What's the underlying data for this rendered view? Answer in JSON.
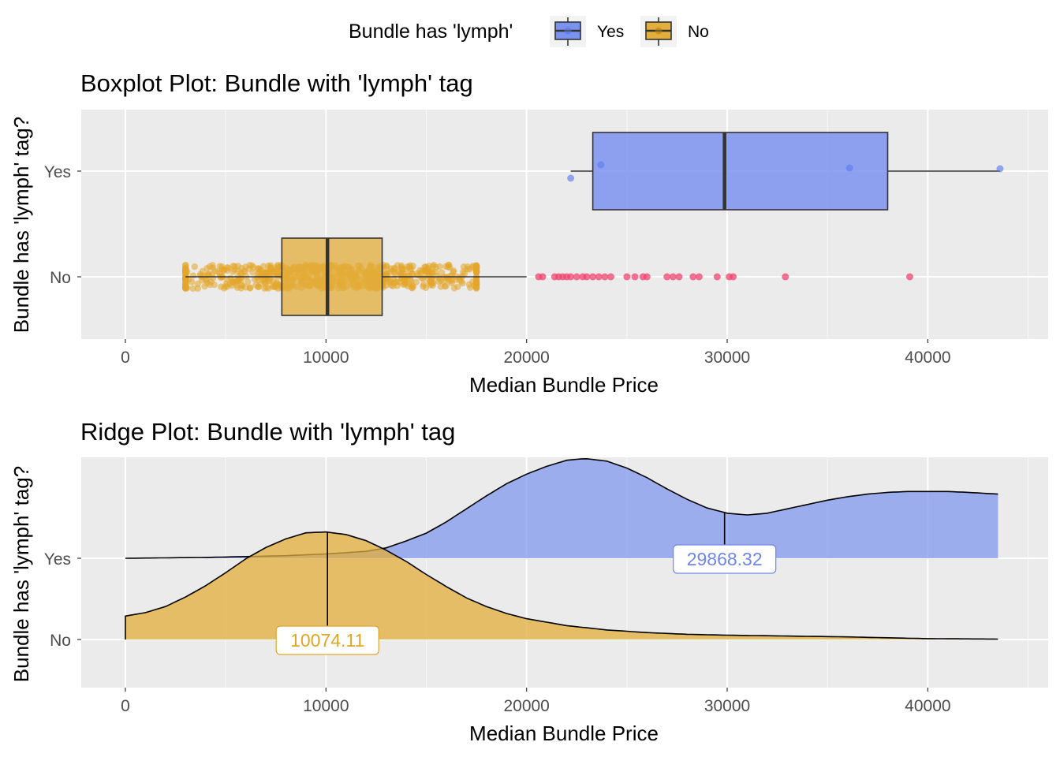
{
  "legend": {
    "title": "Bundle has 'lymph'",
    "items": [
      {
        "label": "Yes",
        "color": "#7b93f0"
      },
      {
        "label": "No",
        "color": "#e3ae3b"
      }
    ]
  },
  "colors": {
    "panel_bg": "#ebebeb",
    "grid": "#ffffff",
    "yes_fill": "#7b93f0",
    "no_fill": "#e3ae3b",
    "yes_point": "#7b93f0",
    "no_point": "#e3a52a",
    "outlier_point": "#f0436e",
    "yes_label": "#6f86ec",
    "no_label": "#e0a627"
  },
  "chart_data": [
    {
      "type": "boxplot",
      "title": "Boxplot Plot: Bundle with 'lymph' tag",
      "xlabel": "Median Bundle Price",
      "ylabel": "Bundle has 'lymph' tag?",
      "categories": [
        "Yes",
        "No"
      ],
      "xlim": [
        -2200,
        46000
      ],
      "x_ticks": [
        0,
        10000,
        20000,
        30000,
        40000
      ],
      "x_tick_labels": [
        "0",
        "10000",
        "20000",
        "30000",
        "40000"
      ],
      "boxes": [
        {
          "name": "Yes",
          "whisker_low": 22200,
          "q1": 23300,
          "median": 29868.32,
          "q3": 38000,
          "whisker_high": 43600
        },
        {
          "name": "No",
          "whisker_low": 3000,
          "q1": 7800,
          "median": 10074.11,
          "q3": 12800,
          "whisker_high": 20000
        }
      ],
      "yes_points": [
        22200,
        23700,
        36100,
        43600
      ],
      "no_points_range": [
        3000,
        17500
      ],
      "outliers": [
        20600,
        20800,
        21400,
        21600,
        21800,
        22000,
        22200,
        22500,
        22800,
        23000,
        23300,
        23600,
        23900,
        24200,
        25000,
        25400,
        25800,
        26000,
        27000,
        27300,
        27600,
        28300,
        28600,
        29500,
        30100,
        30300,
        32900,
        39100
      ],
      "grid": true
    },
    {
      "type": "ridge",
      "title": "Ridge Plot: Bundle with 'lymph' tag",
      "xlabel": "Median Bundle Price",
      "ylabel": "Bundle has 'lymph' tag?",
      "categories": [
        "Yes",
        "No"
      ],
      "xlim": [
        -2200,
        46000
      ],
      "x_ticks": [
        0,
        10000,
        20000,
        30000,
        40000
      ],
      "x_tick_labels": [
        "0",
        "10000",
        "20000",
        "30000",
        "40000"
      ],
      "series": [
        {
          "name": "Yes",
          "x": [
            0,
            2000,
            4000,
            6000,
            8000,
            10000,
            12000,
            13000,
            14000,
            15000,
            16000,
            17000,
            18000,
            19000,
            20000,
            21000,
            22000,
            22900,
            24000,
            25000,
            26000,
            27000,
            28000,
            29000,
            30000,
            31000,
            32000,
            33000,
            34000,
            35000,
            36000,
            37000,
            38000,
            39000,
            40000,
            41000,
            42000,
            43500
          ],
          "density": [
            0.0,
            0.005,
            0.01,
            0.02,
            0.03,
            0.05,
            0.08,
            0.12,
            0.2,
            0.29,
            0.42,
            0.57,
            0.72,
            0.86,
            0.97,
            1.06,
            1.13,
            1.15,
            1.12,
            1.04,
            0.93,
            0.8,
            0.68,
            0.58,
            0.52,
            0.5,
            0.52,
            0.57,
            0.62,
            0.67,
            0.71,
            0.74,
            0.76,
            0.77,
            0.77,
            0.77,
            0.76,
            0.74
          ],
          "median": 29868.32,
          "median_label": "29868.32"
        },
        {
          "name": "No",
          "x": [
            0,
            1000,
            2000,
            3000,
            4000,
            5000,
            6000,
            7000,
            8000,
            9000,
            10000,
            11000,
            12000,
            13000,
            14000,
            15000,
            16000,
            17000,
            18000,
            19000,
            20000,
            22000,
            24000,
            26000,
            28000,
            30000,
            33000,
            36000,
            40000,
            43500
          ],
          "density": [
            0.27,
            0.31,
            0.38,
            0.49,
            0.62,
            0.77,
            0.93,
            1.06,
            1.16,
            1.23,
            1.24,
            1.21,
            1.14,
            1.03,
            0.9,
            0.75,
            0.61,
            0.48,
            0.38,
            0.3,
            0.24,
            0.16,
            0.11,
            0.08,
            0.06,
            0.05,
            0.04,
            0.03,
            0.01,
            0.005
          ],
          "median": 10074.11,
          "median_label": "10074.11"
        }
      ],
      "grid": true
    }
  ]
}
